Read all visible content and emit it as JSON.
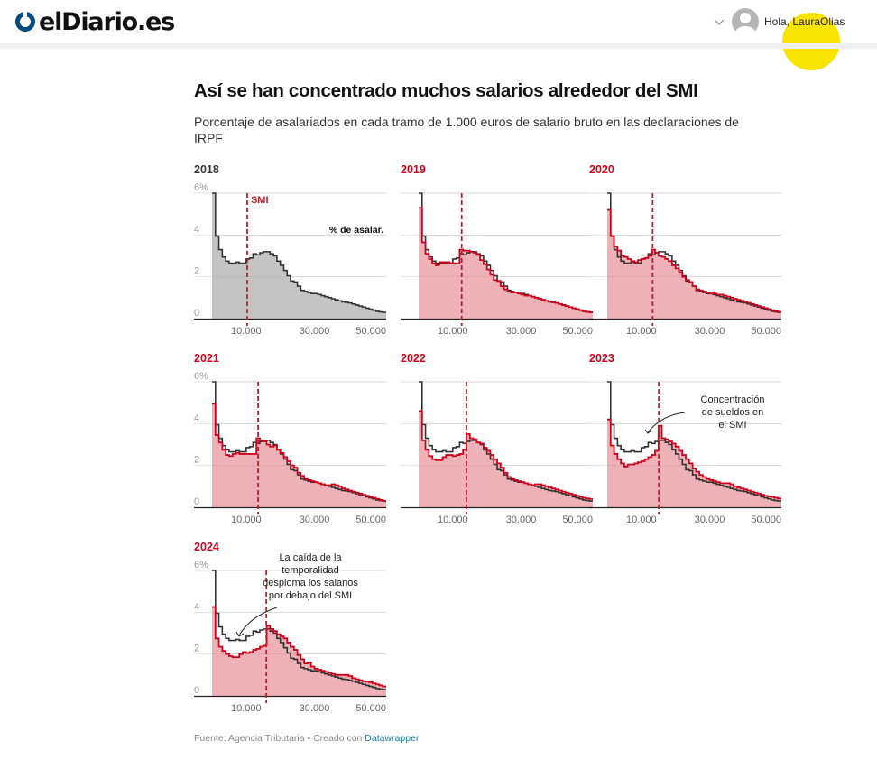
{
  "header": {
    "logo_text": "elDiario.es",
    "user_greeting": "Hola, LauraOlias",
    "icons": {
      "chevron": "chevron-down-icon",
      "avatar": "user-avatar-icon",
      "logo": "logo-ring-icon"
    },
    "brand_color": "#004a7c"
  },
  "chart": {
    "title": "Así se han concentrado muchos salarios alrededor del SMI",
    "subtitle": "Porcentaje de asalariados en cada tramo de 1.000 euros de salario bruto en las declaraciones de IRPF",
    "footer_source": "Fuente: Agencia Tributaria",
    "footer_sep": " • ",
    "footer_created": "Creado con ",
    "footer_link": "Datawrapper"
  },
  "chart_data": {
    "type": "area",
    "layout": "small-multiples",
    "xlabel": "",
    "ylabel": "",
    "xlim": [
      0,
      51
    ],
    "ylim": [
      0,
      6
    ],
    "x_ticks": [
      {
        "value": 10,
        "label": "10.000"
      },
      {
        "value": 30,
        "label": "30.000"
      },
      {
        "value": 50,
        "label": "50.000"
      }
    ],
    "y_ticks": [
      {
        "value": 0,
        "label": "0"
      },
      {
        "value": 2,
        "label": "2"
      },
      {
        "value": 4,
        "label": "4"
      },
      {
        "value": 6,
        "label": "6%"
      }
    ],
    "colors": {
      "reference": "#333333",
      "reference_fill": "#c4c4c4",
      "highlight": "#d0021b",
      "highlight_fill": "#efb1b8",
      "smi_line": "#c21e28",
      "grid": "#e2e2e2"
    },
    "x_unit": "thousand euros (1.000 € bins)",
    "reference_series": {
      "name": "2018",
      "values": [
        6.1,
        3.95,
        3.3,
        2.95,
        2.75,
        2.65,
        2.65,
        2.7,
        2.65,
        2.65,
        2.85,
        2.9,
        3.1,
        3.05,
        3.15,
        3.2,
        3.2,
        3.1,
        3.0,
        2.75,
        2.55,
        2.3,
        2.05,
        1.8,
        1.75,
        1.55,
        1.35,
        1.3,
        1.25,
        1.2,
        1.2,
        1.15,
        1.1,
        1.05,
        1.0,
        0.95,
        0.9,
        0.85,
        0.8,
        0.78,
        0.75,
        0.7,
        0.65,
        0.6,
        0.55,
        0.5,
        0.45,
        0.4,
        0.35,
        0.32,
        0.3
      ]
    },
    "panels": [
      {
        "year": "2018",
        "smi": 10.3,
        "highlight": false,
        "show_y_labels": true,
        "smi_label": "SMI",
        "series_label": "% de asalar.",
        "values": [
          6.1,
          3.95,
          3.3,
          2.95,
          2.75,
          2.65,
          2.65,
          2.7,
          2.65,
          2.65,
          2.85,
          2.9,
          3.1,
          3.05,
          3.15,
          3.2,
          3.2,
          3.1,
          3.0,
          2.75,
          2.55,
          2.3,
          2.05,
          1.8,
          1.75,
          1.55,
          1.35,
          1.3,
          1.25,
          1.2,
          1.2,
          1.15,
          1.1,
          1.05,
          1.0,
          0.95,
          0.9,
          0.85,
          0.8,
          0.78,
          0.75,
          0.7,
          0.65,
          0.6,
          0.55,
          0.5,
          0.45,
          0.4,
          0.35,
          0.32,
          0.3
        ]
      },
      {
        "year": "2019",
        "smi": 12.6,
        "highlight": true,
        "show_y_labels": false,
        "values": [
          5.3,
          3.65,
          3.1,
          2.85,
          2.65,
          2.55,
          2.7,
          2.65,
          2.7,
          2.65,
          2.65,
          2.65,
          3.3,
          3.25,
          3.25,
          3.2,
          3.15,
          3.05,
          2.8,
          2.6,
          2.35,
          2.1,
          1.85,
          1.8,
          1.55,
          1.4,
          1.3,
          1.25,
          1.25,
          1.2,
          1.15,
          1.1,
          1.1,
          1.05,
          1.0,
          0.95,
          0.9,
          0.85,
          0.82,
          0.78,
          0.75,
          0.7,
          0.65,
          0.6,
          0.55,
          0.5,
          0.45,
          0.4,
          0.35,
          0.32,
          0.3
        ]
      },
      {
        "year": "2020",
        "smi": 13.3,
        "highlight": true,
        "show_y_labels": false,
        "values": [
          5.2,
          3.95,
          3.45,
          3.25,
          3.0,
          2.95,
          2.85,
          2.75,
          2.7,
          2.8,
          2.85,
          2.9,
          3.0,
          3.3,
          3.15,
          3.0,
          2.95,
          2.85,
          2.75,
          2.55,
          2.4,
          2.2,
          2.0,
          1.85,
          1.75,
          1.55,
          1.4,
          1.35,
          1.3,
          1.25,
          1.2,
          1.2,
          1.15,
          1.15,
          1.1,
          1.05,
          1.0,
          0.95,
          0.9,
          0.85,
          0.8,
          0.75,
          0.7,
          0.65,
          0.6,
          0.55,
          0.5,
          0.45,
          0.4,
          0.35,
          0.32
        ]
      },
      {
        "year": "2021",
        "smi": 13.5,
        "highlight": true,
        "show_y_labels": true,
        "values": [
          4.95,
          3.45,
          3.1,
          2.75,
          2.5,
          2.45,
          2.55,
          2.6,
          2.55,
          2.55,
          2.55,
          2.55,
          2.55,
          3.3,
          3.2,
          3.15,
          3.0,
          2.9,
          2.95,
          2.75,
          2.6,
          2.4,
          2.2,
          2.0,
          1.9,
          1.65,
          1.5,
          1.35,
          1.3,
          1.25,
          1.2,
          1.15,
          1.1,
          1.05,
          1.05,
          1.1,
          1.05,
          1.0,
          0.9,
          0.85,
          0.8,
          0.75,
          0.7,
          0.65,
          0.6,
          0.55,
          0.5,
          0.45,
          0.4,
          0.35,
          0.3
        ]
      },
      {
        "year": "2022",
        "smi": 14.0,
        "highlight": true,
        "show_y_labels": false,
        "values": [
          4.6,
          3.2,
          2.75,
          2.45,
          2.3,
          2.25,
          2.25,
          2.4,
          2.5,
          2.5,
          2.45,
          2.5,
          2.55,
          2.75,
          3.5,
          3.3,
          3.25,
          3.1,
          3.05,
          2.85,
          2.7,
          2.5,
          2.3,
          2.1,
          1.9,
          1.65,
          1.45,
          1.35,
          1.3,
          1.25,
          1.2,
          1.15,
          1.1,
          1.05,
          1.1,
          1.1,
          1.05,
          1.0,
          0.95,
          0.9,
          0.85,
          0.8,
          0.75,
          0.7,
          0.65,
          0.6,
          0.55,
          0.5,
          0.45,
          0.42,
          0.4
        ]
      },
      {
        "year": "2023",
        "smi": 15.1,
        "highlight": true,
        "show_y_labels": false,
        "annotation": "Concentración de sueldos en el SMI",
        "annotation_lines": [
          "Concentración",
          "de sueldos en",
          "el SMI"
        ],
        "values": [
          4.2,
          2.95,
          2.55,
          2.3,
          2.1,
          1.95,
          2.05,
          2.05,
          2.1,
          2.15,
          2.2,
          2.3,
          2.4,
          2.5,
          2.7,
          3.9,
          3.3,
          3.25,
          3.15,
          3.05,
          2.9,
          2.7,
          2.5,
          2.3,
          2.1,
          1.85,
          1.7,
          1.55,
          1.45,
          1.35,
          1.3,
          1.25,
          1.2,
          1.15,
          1.15,
          1.15,
          1.1,
          1.0,
          0.95,
          0.9,
          0.85,
          0.8,
          0.75,
          0.7,
          0.65,
          0.6,
          0.55,
          0.52,
          0.5,
          0.45,
          0.42
        ]
      },
      {
        "year": "2024",
        "smi": 15.9,
        "highlight": true,
        "show_y_labels": true,
        "annotation": "La caída de la temporalidad desploma los salarios por debajo del SMI",
        "annotation_lines": [
          "La caída de la",
          "temporalidad",
          "desploma los salarios",
          "por debajo del SMI"
        ],
        "values": [
          4.25,
          2.75,
          2.35,
          2.15,
          2.0,
          1.9,
          1.85,
          1.85,
          2.0,
          2.1,
          2.05,
          2.1,
          2.2,
          2.25,
          2.35,
          2.4,
          3.35,
          3.2,
          3.1,
          2.95,
          2.85,
          2.75,
          2.55,
          2.35,
          2.2,
          1.95,
          1.75,
          1.55,
          1.6,
          1.4,
          1.3,
          1.25,
          1.2,
          1.15,
          1.1,
          1.05,
          1.0,
          1.0,
          1.0,
          1.0,
          0.95,
          0.85,
          0.8,
          0.75,
          0.7,
          0.68,
          0.65,
          0.6,
          0.55,
          0.5,
          0.45
        ]
      }
    ]
  }
}
